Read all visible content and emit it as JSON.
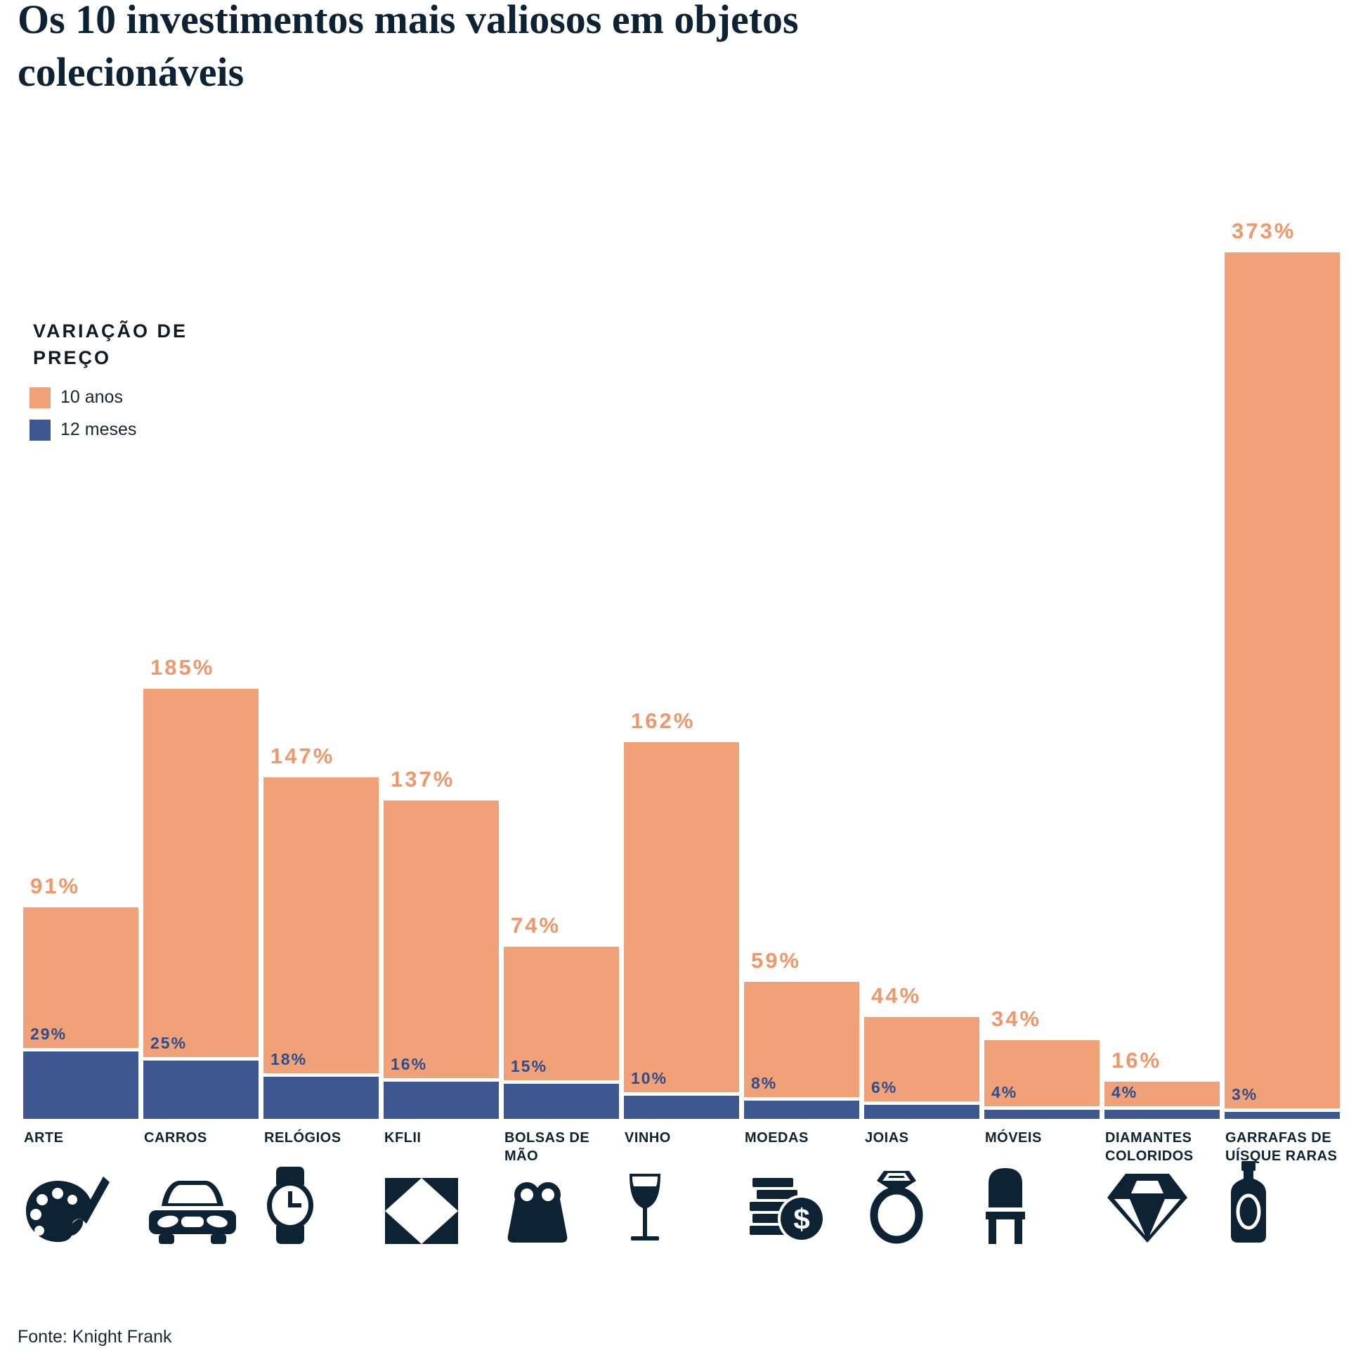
{
  "title": "Os 10 investimentos mais valiosos em objetos colecionáveis",
  "legend": {
    "title": "VARIAÇÃO DE PREÇO",
    "items": [
      {
        "label": "10 anos",
        "color": "#F0A178"
      },
      {
        "label": "12 meses",
        "color": "#3D5890"
      }
    ]
  },
  "source": "Fonte: Knight Frank",
  "colors": {
    "orange_bar": "#F0A178",
    "orange_label": "#EF976B",
    "blue_bar": "#3D5890",
    "blue_label": "#2E4C8A",
    "navy": "#0D2333",
    "background": "#FFFFFF"
  },
  "chart_data": {
    "type": "bar",
    "title": "Os 10 investimentos mais valiosos em objetos colecionáveis",
    "categories": [
      "ARTE",
      "CARROS",
      "RELÓGIOS",
      "KFLII",
      "BOLSAS DE MÃO",
      "VINHO",
      "MOEDAS",
      "JOIAS",
      "MÓVEIS",
      "DIAMANTES COLORIDOS",
      "GARRAFAS DE UÍSQUE RARAS"
    ],
    "series": [
      {
        "name": "10 anos",
        "values": [
          91,
          185,
          147,
          137,
          74,
          162,
          59,
          44,
          34,
          16,
          373
        ]
      },
      {
        "name": "12 meses",
        "values": [
          29,
          25,
          18,
          16,
          15,
          10,
          8,
          6,
          4,
          4,
          3
        ]
      }
    ],
    "value_suffix": "%",
    "icons": [
      "palette",
      "car",
      "watch",
      "kflii-logo",
      "handbag",
      "wine-glass",
      "coins",
      "ring",
      "chair",
      "diamond",
      "whisky-bottle"
    ],
    "xlabel": "",
    "ylabel": "Variação de preço (%)",
    "ylim": [
      0,
      373
    ],
    "grid": false,
    "legend_position": "upper-left",
    "bars_overlaid": true
  }
}
